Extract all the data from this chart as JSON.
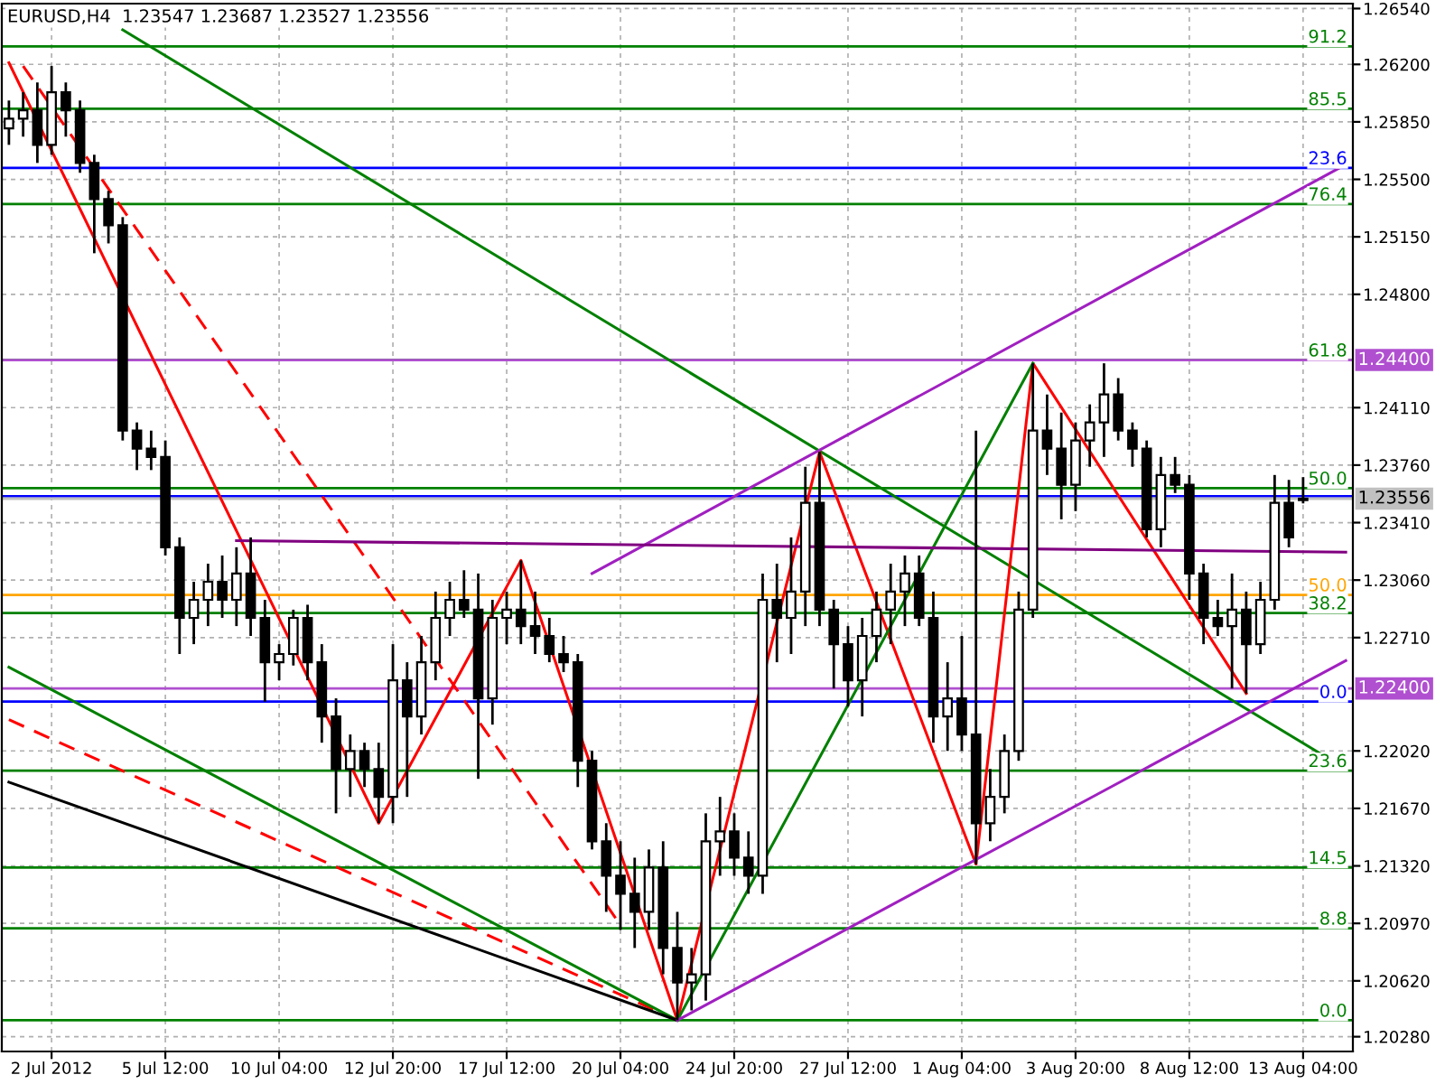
{
  "chart_data": {
    "type": "candlestick",
    "title": "EURUSD,H4  1.23547 1.23687 1.23527 1.23556",
    "categories": [
      null,
      null,
      null,
      "2 Jul 2012",
      null,
      null,
      null,
      null,
      null,
      null,
      null,
      "5 Jul 12:00",
      null,
      null,
      null,
      null,
      null,
      null,
      null,
      "10 Jul 04:00",
      null,
      null,
      null,
      null,
      null,
      null,
      null,
      "12 Jul 20:00",
      null,
      null,
      null,
      null,
      null,
      null,
      null,
      "17 Jul 12:00",
      null,
      null,
      null,
      null,
      null,
      null,
      null,
      "20 Jul 04:00",
      null,
      null,
      null,
      null,
      null,
      null,
      null,
      "24 Jul 20:00",
      null,
      null,
      null,
      null,
      null,
      null,
      null,
      "27 Jul 12:00",
      null,
      null,
      null,
      null,
      null,
      null,
      null,
      "1 Aug 04:00",
      null,
      null,
      null,
      null,
      null,
      null,
      null,
      "3 Aug 20:00",
      null,
      null,
      null,
      null,
      null,
      null,
      null,
      "8 Aug 12:00",
      null,
      null,
      null,
      null,
      null,
      null,
      null,
      "13 Aug 04:00",
      null,
      null,
      null
    ],
    "ylim": [
      1.2019,
      1.2657
    ],
    "yticks": [
      {
        "value": 1.2654,
        "label": "1.26540"
      },
      {
        "value": 1.262,
        "label": "1.26200"
      },
      {
        "value": 1.2585,
        "label": "1.25850"
      },
      {
        "value": 1.255,
        "label": "1.25500"
      },
      {
        "value": 1.2515,
        "label": "1.25150"
      },
      {
        "value": 1.248,
        "label": "1.24800"
      },
      {
        "value": 1.2411,
        "label": "1.24110"
      },
      {
        "value": 1.2376,
        "label": "1.23760"
      },
      {
        "value": 1.2341,
        "label": "1.23410"
      },
      {
        "value": 1.2306,
        "label": "1.23060"
      },
      {
        "value": 1.2271,
        "label": "1.22710"
      },
      {
        "value": 1.2202,
        "label": "1.22020"
      },
      {
        "value": 1.2167,
        "label": "1.21670"
      },
      {
        "value": 1.2132,
        "label": "1.21320"
      },
      {
        "value": 1.2097,
        "label": "1.20970"
      },
      {
        "value": 1.2062,
        "label": "1.20620"
      },
      {
        "value": 1.2028,
        "label": "1.20280"
      }
    ],
    "grid": true,
    "ref_lines": [
      {
        "axis": "y",
        "value": 1.2631,
        "label": null,
        "color": "#008000",
        "line_style": "solid"
      },
      {
        "axis": "y",
        "value": 1.2593,
        "label": null,
        "color": "#008000",
        "line_style": "solid"
      },
      {
        "axis": "y",
        "value": 1.2557,
        "label": null,
        "color": "#0000ff",
        "line_style": "solid"
      },
      {
        "axis": "y",
        "value": 1.2535,
        "label": null,
        "color": "#008000",
        "line_style": "solid"
      },
      {
        "axis": "y",
        "value": 1.244,
        "label": null,
        "color": "#008000",
        "line_style": "solid"
      },
      {
        "axis": "y",
        "value": 1.244,
        "label": "1.24400",
        "color": "#b050d0",
        "line_style": "solid"
      },
      {
        "axis": "y",
        "value": 1.2362,
        "label": null,
        "color": "#008000",
        "line_style": "solid"
      },
      {
        "axis": "y",
        "value": 1.2357,
        "label": null,
        "color": "#0000ff",
        "line_style": "solid"
      },
      {
        "axis": "y",
        "value": 1.23556,
        "label": "1.23556",
        "color": "#c0c0c0",
        "line_style": "solid"
      },
      {
        "axis": "y",
        "value": 1.2297,
        "label": null,
        "color": "#ffa500",
        "line_style": "solid"
      },
      {
        "axis": "y",
        "value": 1.2286,
        "label": null,
        "color": "#008000",
        "line_style": "solid"
      },
      {
        "axis": "y",
        "value": 1.224,
        "label": "1.22400",
        "color": "#b050d0",
        "line_style": "solid"
      },
      {
        "axis": "y",
        "value": 1.2232,
        "label": null,
        "color": "#0000ff",
        "line_style": "solid"
      },
      {
        "axis": "y",
        "value": 1.219,
        "label": null,
        "color": "#008000",
        "line_style": "solid"
      },
      {
        "axis": "y",
        "value": 1.2131,
        "label": null,
        "color": "#008000",
        "line_style": "solid"
      },
      {
        "axis": "y",
        "value": 1.2094,
        "label": null,
        "color": "#008000",
        "line_style": "solid"
      },
      {
        "axis": "y",
        "value": 1.2038,
        "label": null,
        "color": "#008000",
        "line_style": "solid"
      }
    ],
    "annotations": [
      {
        "text": "91.2",
        "y": 1.2631
      },
      {
        "text": "85.5",
        "y": 1.2593
      },
      {
        "text": "23.6",
        "y": 1.2557
      },
      {
        "text": "76.4",
        "y": 1.2535
      },
      {
        "text": "61.8",
        "y": 1.244
      },
      {
        "text": "50.0",
        "y": 1.2362
      },
      {
        "text": "50.0",
        "y": 1.2297
      },
      {
        "text": "38.2",
        "y": 1.2286
      },
      {
        "text": "0.0",
        "y": 1.2232
      },
      {
        "text": "23.6",
        "y": 1.219
      },
      {
        "text": "14.5",
        "y": 1.2131
      },
      {
        "text": "8.8",
        "y": 1.2094
      },
      {
        "text": "0.0",
        "y": 1.2038
      }
    ],
    "series": [
      {
        "type": "line",
        "color": "#008000",
        "line_style": "solid",
        "values": [
          null,
          null,
          null,
          null,
          null,
          null,
          null,
          null,
          1.2641,
          null,
          null,
          null,
          null,
          null,
          null,
          null,
          null,
          null,
          null,
          null,
          null,
          null,
          null,
          null,
          null,
          null,
          null,
          null,
          null,
          null,
          null,
          null,
          null,
          null,
          null,
          null,
          null,
          null,
          null,
          null,
          null,
          null,
          null,
          null,
          null,
          null,
          null,
          null,
          null,
          null,
          null,
          null,
          null,
          null,
          null,
          null,
          null,
          null,
          null,
          null,
          null,
          null,
          null,
          null,
          null,
          null,
          null,
          null,
          null,
          null,
          null,
          null,
          null,
          null,
          null,
          null,
          null,
          null,
          null,
          null,
          null,
          null,
          null,
          null,
          null,
          null,
          null,
          null,
          null,
          null,
          null,
          null,
          null,
          null,
          1.2191
        ]
      },
      {
        "type": "line",
        "color": "#ff0000",
        "line_style": "solid",
        "values": [
          1.2621,
          null,
          null,
          null,
          null,
          null,
          null,
          null,
          null,
          null,
          null,
          null,
          null,
          null,
          null,
          null,
          null,
          null,
          null,
          null,
          null,
          null,
          null,
          null,
          null,
          null,
          1.2158,
          null,
          null,
          null,
          null,
          null,
          null,
          null,
          null,
          null,
          1.2318,
          null,
          null,
          null,
          null,
          null,
          null,
          null,
          null,
          null,
          null,
          1.2038,
          null,
          null,
          null,
          null,
          null,
          null,
          null,
          null,
          null,
          1.2384,
          null,
          null,
          null,
          null,
          null,
          null,
          null,
          null,
          null,
          null,
          1.2133,
          null,
          null,
          null,
          1.2438,
          null,
          null,
          null,
          null,
          null,
          null,
          null,
          null,
          null,
          null,
          null,
          null,
          null,
          null,
          1.2237,
          null,
          null,
          null,
          null,
          null,
          null,
          null
        ]
      },
      {
        "type": "line",
        "color": "#ff0000",
        "line_style": "dashed",
        "values": [
          null,
          1.2619,
          null,
          null,
          null,
          null,
          null,
          null,
          null,
          null,
          null,
          null,
          null,
          null,
          null,
          null,
          null,
          null,
          null,
          null,
          null,
          null,
          null,
          null,
          null,
          null,
          null,
          null,
          null,
          null,
          null,
          null,
          null,
          null,
          null,
          null,
          null,
          null,
          null,
          null,
          null,
          null,
          null,
          1.2096,
          null,
          null,
          null,
          null,
          null,
          null,
          null,
          null,
          null,
          null,
          null,
          null,
          null,
          null,
          null,
          null,
          null,
          null,
          null,
          null,
          null,
          null,
          null,
          null,
          null,
          null,
          null,
          null,
          null,
          null,
          null,
          null,
          null,
          null,
          null,
          null,
          null,
          null,
          null,
          null,
          null,
          null,
          null,
          null,
          null,
          null,
          null,
          null,
          null,
          null,
          null
        ]
      },
      {
        "type": "line",
        "color": "#ff0000",
        "line_style": "dashed",
        "values": [
          1.2221,
          null,
          null,
          null,
          null,
          null,
          null,
          null,
          null,
          null,
          null,
          null,
          null,
          null,
          null,
          null,
          null,
          null,
          null,
          null,
          null,
          null,
          null,
          null,
          null,
          null,
          null,
          null,
          null,
          null,
          null,
          null,
          null,
          null,
          null,
          null,
          null,
          null,
          null,
          null,
          null,
          null,
          null,
          null,
          null,
          null,
          null,
          1.2038,
          null,
          null,
          null,
          null,
          null,
          null,
          null,
          null,
          null,
          null,
          null,
          null,
          null,
          null,
          null,
          null,
          null,
          null,
          null,
          null,
          null,
          null,
          null,
          null,
          null,
          null,
          null,
          null,
          null,
          null,
          null,
          null,
          null,
          null,
          null,
          null,
          null,
          null,
          null,
          null,
          null,
          null,
          null,
          null,
          null,
          null,
          null
        ]
      },
      {
        "type": "line",
        "color": "#008000",
        "line_style": "solid",
        "values": [
          1.2253,
          null,
          null,
          null,
          null,
          null,
          null,
          null,
          null,
          null,
          null,
          null,
          null,
          null,
          null,
          null,
          null,
          null,
          null,
          null,
          null,
          null,
          null,
          null,
          null,
          null,
          null,
          null,
          null,
          null,
          null,
          null,
          null,
          null,
          null,
          null,
          null,
          null,
          null,
          null,
          null,
          null,
          null,
          null,
          null,
          null,
          null,
          1.2038,
          null,
          null,
          null,
          null,
          null,
          null,
          null,
          null,
          null,
          null,
          null,
          null,
          null,
          null,
          null,
          null,
          null,
          null,
          null,
          null,
          null,
          null,
          null,
          null,
          1.2438,
          null,
          null,
          null,
          null,
          null,
          null,
          null,
          null,
          null,
          null,
          null,
          null,
          null,
          null,
          null,
          null,
          null,
          null,
          null,
          null,
          null,
          null
        ]
      },
      {
        "type": "line",
        "color": "#000000",
        "line_style": "solid",
        "values": [
          1.2183,
          null,
          null,
          null,
          null,
          null,
          null,
          null,
          null,
          null,
          null,
          null,
          null,
          null,
          null,
          null,
          null,
          null,
          null,
          null,
          null,
          null,
          null,
          null,
          null,
          null,
          null,
          null,
          null,
          null,
          null,
          null,
          null,
          null,
          null,
          null,
          null,
          null,
          null,
          null,
          null,
          null,
          null,
          null,
          null,
          null,
          null,
          1.2038,
          null,
          null,
          null,
          null,
          null,
          null,
          null,
          null,
          null,
          null,
          null,
          null,
          null,
          null,
          null,
          null,
          null,
          null,
          null,
          null,
          null,
          null,
          null,
          null,
          null,
          null,
          null,
          null,
          null,
          null,
          null,
          null,
          null,
          null,
          null,
          null,
          null,
          null,
          null,
          null,
          null,
          null,
          null,
          null,
          null,
          null,
          null
        ]
      },
      {
        "type": "line",
        "color": "#a020c0",
        "line_style": "solid",
        "values": [
          null,
          null,
          null,
          null,
          null,
          null,
          null,
          null,
          null,
          null,
          null,
          null,
          null,
          null,
          null,
          null,
          null,
          null,
          null,
          null,
          null,
          null,
          null,
          null,
          null,
          null,
          null,
          null,
          null,
          null,
          null,
          null,
          null,
          null,
          null,
          null,
          null,
          null,
          null,
          null,
          null,
          1.231,
          null,
          null,
          null,
          null,
          null,
          null,
          null,
          null,
          null,
          null,
          null,
          null,
          null,
          null,
          null,
          null,
          null,
          null,
          null,
          null,
          null,
          null,
          null,
          null,
          null,
          null,
          null,
          null,
          null,
          null,
          null,
          null,
          null,
          null,
          null,
          null,
          null,
          null,
          null,
          null,
          null,
          null,
          null,
          null,
          null,
          null,
          null,
          null,
          null,
          null,
          null,
          null,
          1.2559
        ]
      },
      {
        "type": "line",
        "color": "#a020c0",
        "line_style": "solid",
        "values": [
          null,
          null,
          null,
          null,
          null,
          null,
          null,
          null,
          null,
          null,
          null,
          null,
          null,
          null,
          null,
          null,
          null,
          null,
          null,
          null,
          null,
          null,
          null,
          null,
          null,
          null,
          null,
          null,
          null,
          null,
          null,
          null,
          null,
          null,
          null,
          null,
          null,
          null,
          null,
          null,
          null,
          null,
          null,
          null,
          null,
          null,
          null,
          1.2038,
          null,
          null,
          null,
          null,
          null,
          null,
          null,
          null,
          null,
          null,
          null,
          null,
          null,
          null,
          null,
          null,
          null,
          null,
          null,
          null,
          null,
          null,
          null,
          null,
          null,
          null,
          null,
          null,
          null,
          null,
          null,
          null,
          null,
          null,
          null,
          null,
          null,
          null,
          null,
          null,
          null,
          null,
          null,
          null,
          null,
          null,
          1.2257
        ]
      },
      {
        "type": "line",
        "color": "#800080",
        "line_style": "solid",
        "values": [
          null,
          null,
          null,
          null,
          null,
          null,
          null,
          null,
          null,
          null,
          null,
          null,
          null,
          null,
          null,
          null,
          1.233,
          null,
          null,
          null,
          null,
          null,
          null,
          null,
          null,
          null,
          null,
          null,
          null,
          null,
          null,
          null,
          null,
          null,
          null,
          null,
          null,
          null,
          null,
          null,
          null,
          null,
          null,
          null,
          null,
          null,
          null,
          null,
          null,
          null,
          null,
          null,
          null,
          null,
          null,
          null,
          null,
          null,
          null,
          null,
          null,
          null,
          null,
          null,
          null,
          null,
          null,
          null,
          null,
          null,
          null,
          null,
          null,
          null,
          null,
          null,
          null,
          null,
          null,
          null,
          null,
          null,
          null,
          null,
          null,
          null,
          null,
          null,
          null,
          null,
          null,
          null,
          null,
          null,
          1.2323
        ]
      },
      {
        "color": "#000000",
        "ohlc": [
          [
            1.2581,
            1.2598,
            1.2571,
            1.2587
          ],
          [
            1.2587,
            1.2603,
            1.2576,
            1.2592
          ],
          [
            1.2592,
            1.2609,
            1.256,
            1.2571
          ],
          [
            1.2571,
            1.2619,
            1.2565,
            1.2603
          ],
          [
            1.2603,
            1.2609,
            1.2576,
            1.2592
          ],
          [
            1.2592,
            1.2598,
            1.2554,
            1.256
          ],
          [
            1.256,
            1.2565,
            1.2505,
            1.2538
          ],
          [
            1.2538,
            1.2543,
            1.2511,
            1.2522
          ],
          [
            1.2522,
            1.2527,
            1.2391,
            1.2397
          ],
          [
            1.2397,
            1.2402,
            1.2373,
            1.2386
          ],
          [
            1.2386,
            1.2397,
            1.2373,
            1.2381
          ],
          [
            1.2381,
            1.2391,
            1.2321,
            1.2326
          ],
          [
            1.2326,
            1.2332,
            1.2261,
            1.2283
          ],
          [
            1.2283,
            1.2305,
            1.2267,
            1.2294
          ],
          [
            1.2294,
            1.2316,
            1.2278,
            1.2305
          ],
          [
            1.2305,
            1.2321,
            1.2283,
            1.2294
          ],
          [
            1.2294,
            1.2326,
            1.2278,
            1.231
          ],
          [
            1.231,
            1.2332,
            1.2272,
            1.2283
          ],
          [
            1.2283,
            1.2294,
            1.2232,
            1.2256
          ],
          [
            1.2256,
            1.2267,
            1.2245,
            1.2261
          ],
          [
            1.2261,
            1.2288,
            1.2254,
            1.2283
          ],
          [
            1.2283,
            1.2291,
            1.2245,
            1.2256
          ],
          [
            1.2256,
            1.2267,
            1.2207,
            1.2223
          ],
          [
            1.2223,
            1.2234,
            1.2164,
            1.2191
          ],
          [
            1.2191,
            1.2212,
            1.2174,
            1.2202
          ],
          [
            1.2202,
            1.2207,
            1.218,
            1.2191
          ],
          [
            1.2191,
            1.2207,
            1.2158,
            1.2174
          ],
          [
            1.2174,
            1.2267,
            1.2158,
            1.2245
          ],
          [
            1.2245,
            1.2256,
            1.2174,
            1.2223
          ],
          [
            1.2223,
            1.2272,
            1.2212,
            1.2256
          ],
          [
            1.2256,
            1.2299,
            1.2245,
            1.2283
          ],
          [
            1.2283,
            1.2305,
            1.2272,
            1.2294
          ],
          [
            1.2294,
            1.2312,
            1.2283,
            1.2288
          ],
          [
            1.2288,
            1.231,
            1.2185,
            1.2234
          ],
          [
            1.2234,
            1.2294,
            1.2218,
            1.2283
          ],
          [
            1.2283,
            1.2299,
            1.2267,
            1.2288
          ],
          [
            1.2288,
            1.2318,
            1.2267,
            1.2278
          ],
          [
            1.2278,
            1.2299,
            1.2261,
            1.2272
          ],
          [
            1.2272,
            1.2283,
            1.2256,
            1.2261
          ],
          [
            1.2261,
            1.2272,
            1.225,
            1.2256
          ],
          [
            1.2256,
            1.2261,
            1.218,
            1.2196
          ],
          [
            1.2196,
            1.2202,
            1.2142,
            1.2147
          ],
          [
            1.2147,
            1.2158,
            1.2104,
            1.2126
          ],
          [
            1.2126,
            1.2147,
            1.2093,
            1.2115
          ],
          [
            1.2115,
            1.2137,
            1.2082,
            1.2104
          ],
          [
            1.2104,
            1.2142,
            1.2093,
            1.2131
          ],
          [
            1.2131,
            1.2147,
            1.2066,
            1.2082
          ],
          [
            1.2082,
            1.2104,
            1.2038,
            1.2061
          ],
          [
            1.2061,
            1.2082,
            1.2044,
            1.2066
          ],
          [
            1.2066,
            1.2164,
            1.205,
            1.2147
          ],
          [
            1.2147,
            1.2174,
            1.2126,
            1.2153
          ],
          [
            1.2153,
            1.2164,
            1.2126,
            1.2137
          ],
          [
            1.2137,
            1.2153,
            1.2115,
            1.2126
          ],
          [
            1.2126,
            1.231,
            1.2115,
            1.2294
          ],
          [
            1.2294,
            1.2316,
            1.2256,
            1.2283
          ],
          [
            1.2283,
            1.2332,
            1.2261,
            1.2299
          ],
          [
            1.2299,
            1.2375,
            1.2278,
            1.2353
          ],
          [
            1.2353,
            1.2384,
            1.2278,
            1.2288
          ],
          [
            1.2288,
            1.2294,
            1.224,
            1.2267
          ],
          [
            1.2267,
            1.2278,
            1.2229,
            1.2245
          ],
          [
            1.2245,
            1.2283,
            1.2223,
            1.2272
          ],
          [
            1.2272,
            1.2299,
            1.2256,
            1.2288
          ],
          [
            1.2288,
            1.2316,
            1.2267,
            1.2299
          ],
          [
            1.2299,
            1.2321,
            1.2278,
            1.231
          ],
          [
            1.231,
            1.2321,
            1.2278,
            1.2283
          ],
          [
            1.2283,
            1.2299,
            1.2207,
            1.2223
          ],
          [
            1.2223,
            1.2256,
            1.2202,
            1.2234
          ],
          [
            1.2234,
            1.2272,
            1.2202,
            1.2212
          ],
          [
            1.2212,
            1.2397,
            1.2133,
            1.2158
          ],
          [
            1.2158,
            1.2191,
            1.2147,
            1.2174
          ],
          [
            1.2174,
            1.2212,
            1.2164,
            1.2202
          ],
          [
            1.2202,
            1.2299,
            1.2196,
            1.2288
          ],
          [
            1.2288,
            1.2438,
            1.2283,
            1.2397
          ],
          [
            1.2397,
            1.2419,
            1.237,
            1.2386
          ],
          [
            1.2386,
            1.2408,
            1.2343,
            1.2364
          ],
          [
            1.2364,
            1.2402,
            1.2348,
            1.2391
          ],
          [
            1.2391,
            1.2413,
            1.2375,
            1.2402
          ],
          [
            1.2402,
            1.2438,
            1.2381,
            1.2419
          ],
          [
            1.2419,
            1.2429,
            1.2391,
            1.2397
          ],
          [
            1.2397,
            1.2402,
            1.2375,
            1.2386
          ],
          [
            1.2386,
            1.2391,
            1.2332,
            1.2337
          ],
          [
            1.2337,
            1.2381,
            1.2326,
            1.237
          ],
          [
            1.237,
            1.2381,
            1.2359,
            1.2364
          ],
          [
            1.2364,
            1.237,
            1.2294,
            1.231
          ],
          [
            1.231,
            1.2316,
            1.2267,
            1.2283
          ],
          [
            1.2283,
            1.2294,
            1.2272,
            1.2278
          ],
          [
            1.2278,
            1.231,
            1.224,
            1.2288
          ],
          [
            1.2288,
            1.2299,
            1.2237,
            1.2267
          ],
          [
            1.2267,
            1.2305,
            1.2261,
            1.2294
          ],
          [
            1.2294,
            1.237,
            1.2288,
            1.2353
          ],
          [
            1.2353,
            1.2367,
            1.2326,
            1.2332
          ],
          [
            1.23547,
            1.23687,
            1.23527,
            1.23556
          ],
          null,
          null,
          null
        ]
      }
    ]
  }
}
